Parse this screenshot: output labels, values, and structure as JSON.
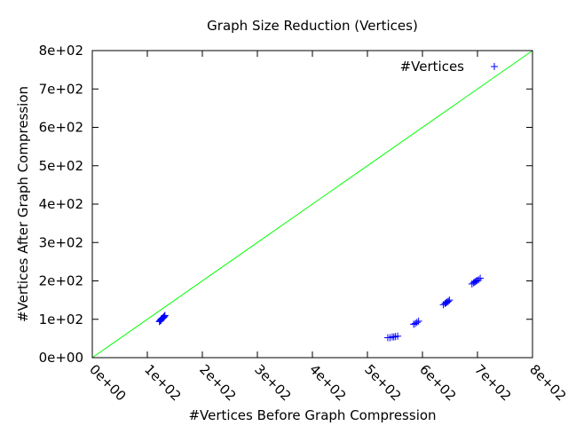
{
  "chart_data": {
    "type": "scatter",
    "title": "Graph Size Reduction (Vertices)",
    "xlabel": "#Vertices Before Graph Compression",
    "ylabel": "#Vertices After Graph Compression",
    "xlim": [
      0,
      800
    ],
    "ylim": [
      0,
      800
    ],
    "x_ticks": [
      "0e+00",
      "1e+02",
      "2e+02",
      "3e+02",
      "4e+02",
      "5e+02",
      "6e+02",
      "7e+02",
      "8e+02"
    ],
    "y_ticks": [
      "0e+00",
      "1e+02",
      "2e+02",
      "3e+02",
      "4e+02",
      "5e+02",
      "6e+02",
      "7e+02",
      "8e+02"
    ],
    "grid": false,
    "legend": {
      "position": "top-right"
    },
    "series": [
      {
        "name": "#Vertices",
        "marker": "plus",
        "color": "#0000ff",
        "points": [
          [
            122,
            94
          ],
          [
            123,
            96
          ],
          [
            124,
            97
          ],
          [
            125,
            98
          ],
          [
            125,
            100
          ],
          [
            126,
            101
          ],
          [
            127,
            102
          ],
          [
            128,
            103
          ],
          [
            129,
            104
          ],
          [
            130,
            106
          ],
          [
            131,
            108
          ],
          [
            132,
            110
          ],
          [
            537,
            52
          ],
          [
            541,
            52
          ],
          [
            545,
            54
          ],
          [
            548,
            54
          ],
          [
            551,
            55
          ],
          [
            555,
            56
          ],
          [
            584,
            87
          ],
          [
            587,
            89
          ],
          [
            590,
            92
          ],
          [
            593,
            95
          ],
          [
            638,
            138
          ],
          [
            641,
            141
          ],
          [
            643,
            143
          ],
          [
            645,
            145
          ],
          [
            647,
            147
          ],
          [
            649,
            150
          ],
          [
            690,
            192
          ],
          [
            693,
            195
          ],
          [
            695,
            197
          ],
          [
            697,
            199
          ],
          [
            699,
            201
          ],
          [
            702,
            203
          ],
          [
            705,
            207
          ]
        ]
      }
    ],
    "reference_line": {
      "x": [
        0,
        800
      ],
      "y": [
        0,
        800
      ],
      "color": "#00ff00"
    }
  }
}
